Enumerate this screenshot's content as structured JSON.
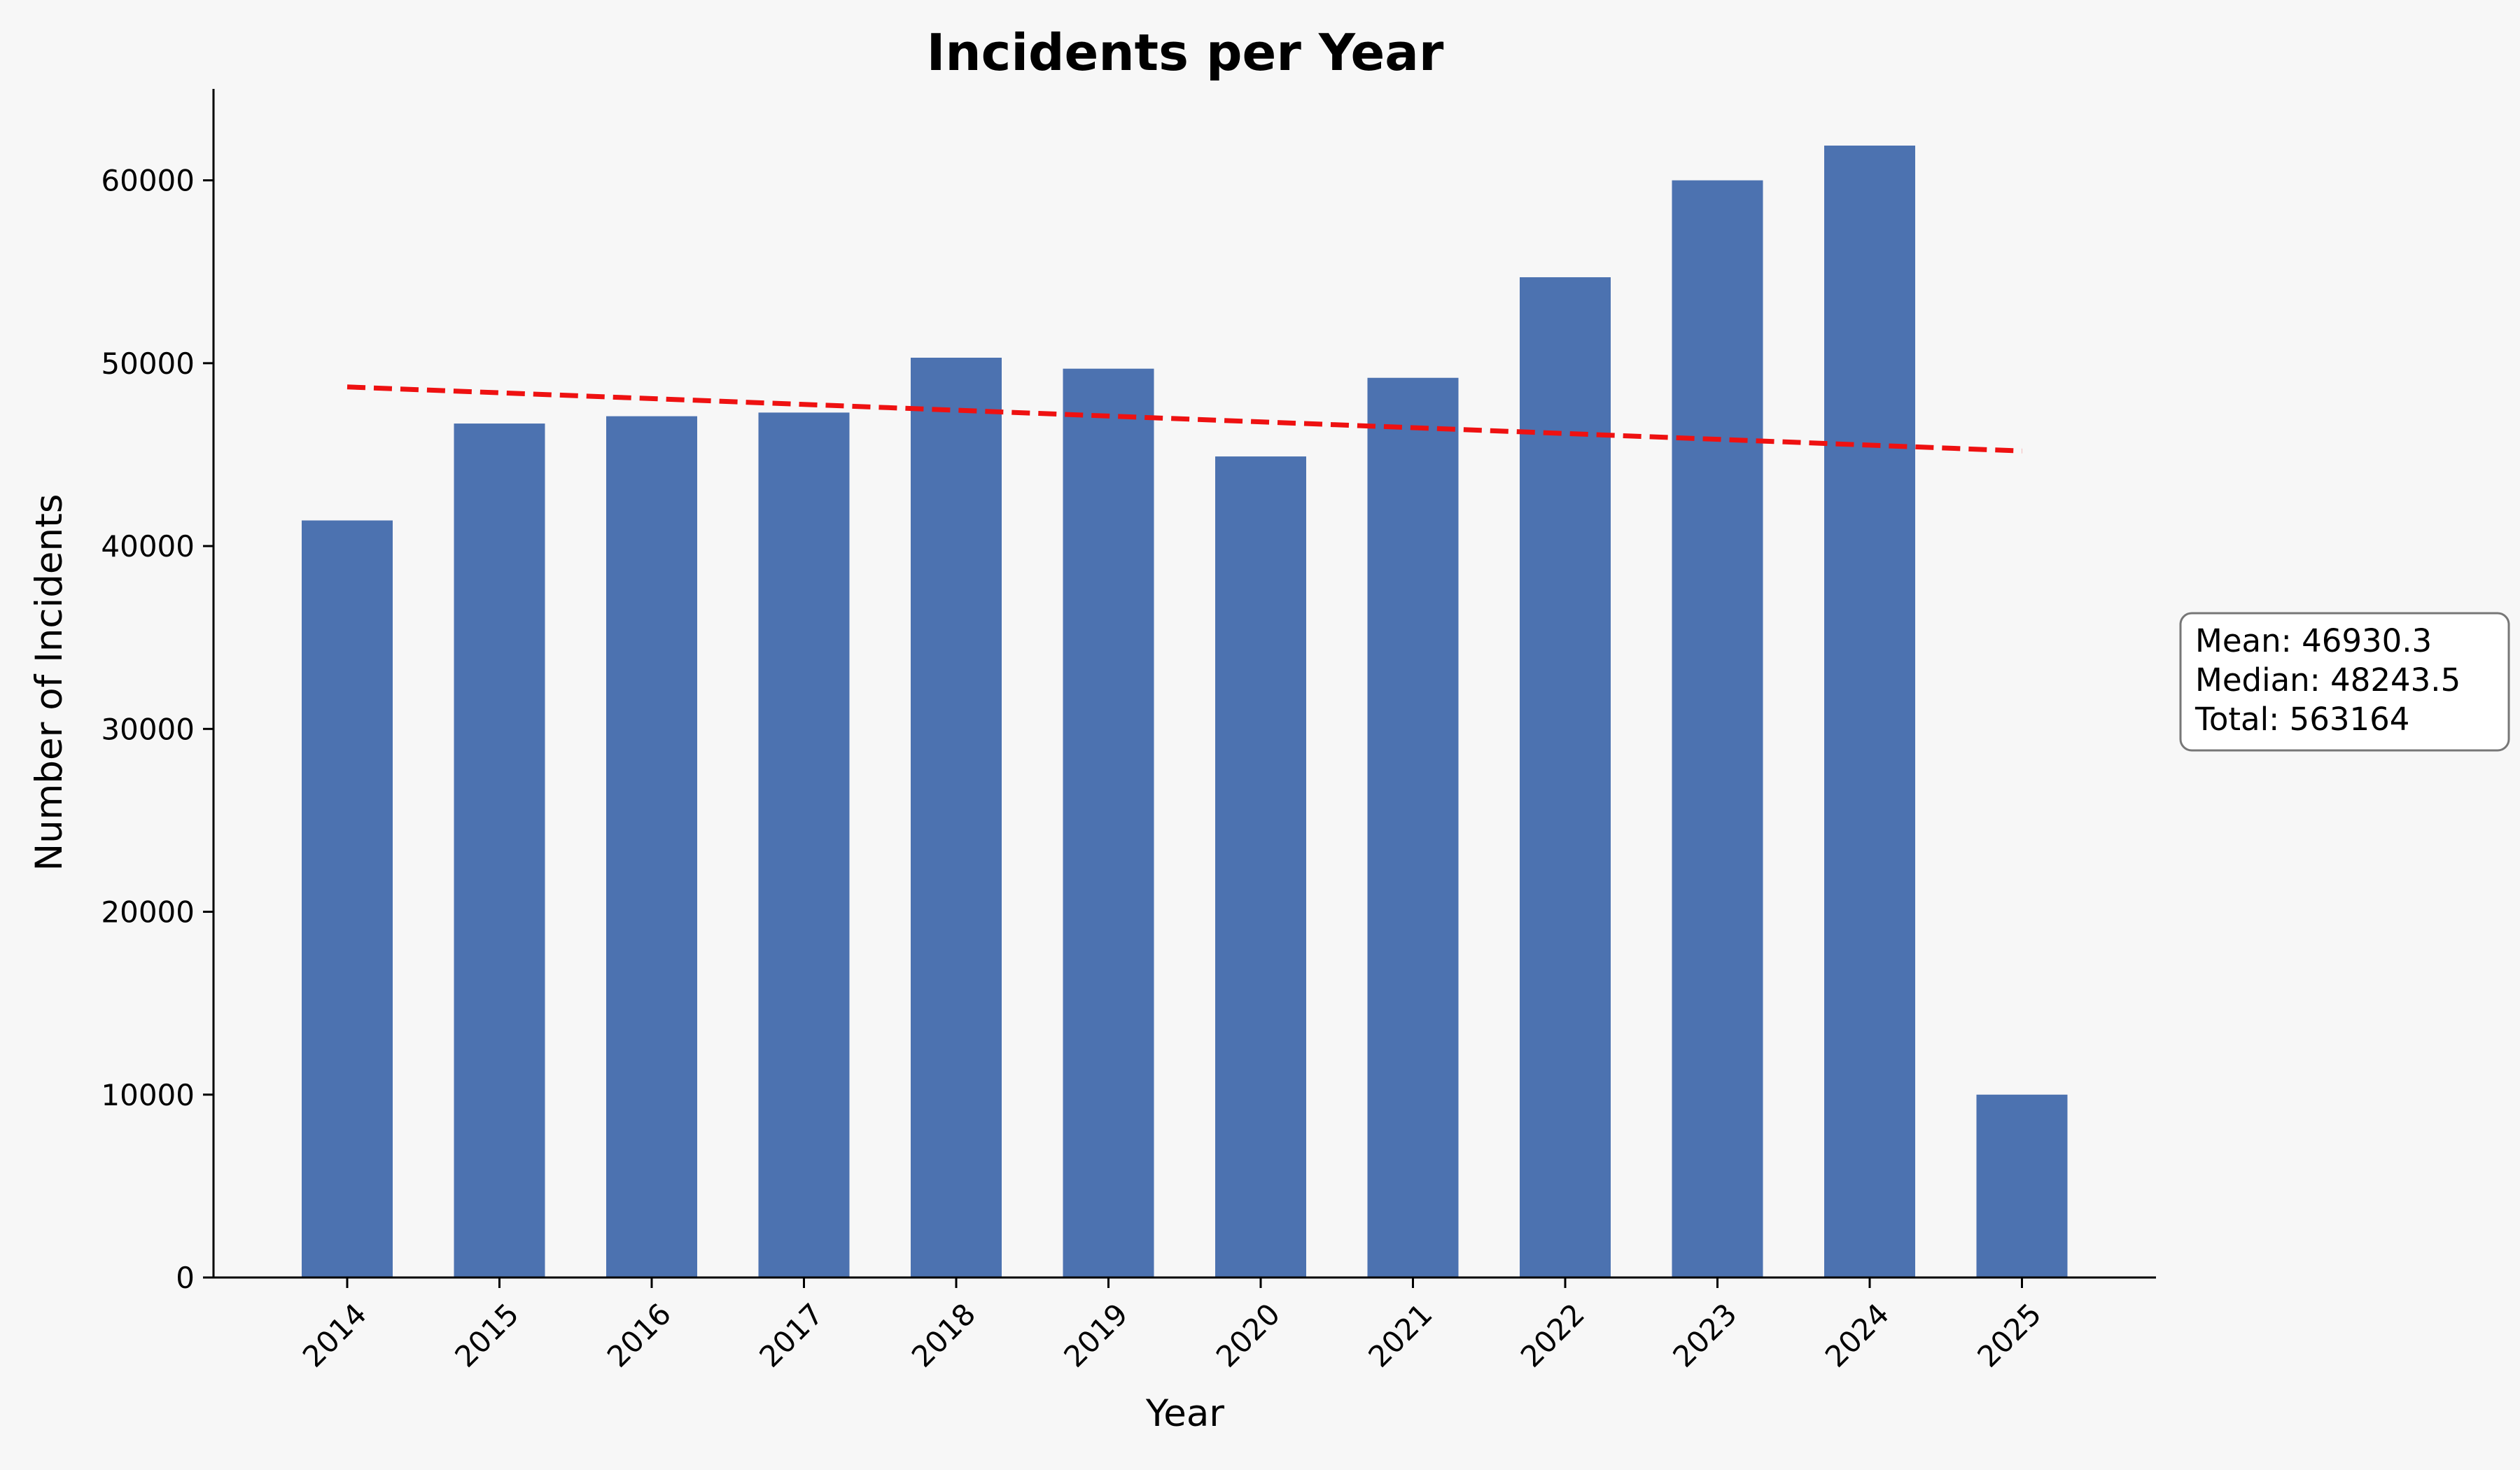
{
  "chart_data": {
    "type": "bar",
    "title": "Incidents per Year",
    "xlabel": "Year",
    "ylabel": "Number of Incidents",
    "categories": [
      "2014",
      "2015",
      "2016",
      "2017",
      "2018",
      "2019",
      "2020",
      "2021",
      "2022",
      "2023",
      "2024",
      "2025"
    ],
    "values": [
      41400,
      46700,
      47100,
      47300,
      50300,
      49700,
      44900,
      49200,
      54700,
      60000,
      61900,
      10000
    ],
    "ylim": [
      0,
      65000
    ],
    "yticks": [
      0,
      10000,
      20000,
      30000,
      40000,
      50000,
      60000
    ],
    "trend_line": {
      "style": "dashed",
      "color": "#ee1111",
      "start": 48700,
      "end": 45200
    },
    "grid": false,
    "bar_color": "#4c72b0",
    "x_tick_rotation": 45
  },
  "stats_box": {
    "mean": "Mean: 46930.3",
    "median": "Median: 48243.5",
    "total": "Total: 563164"
  }
}
